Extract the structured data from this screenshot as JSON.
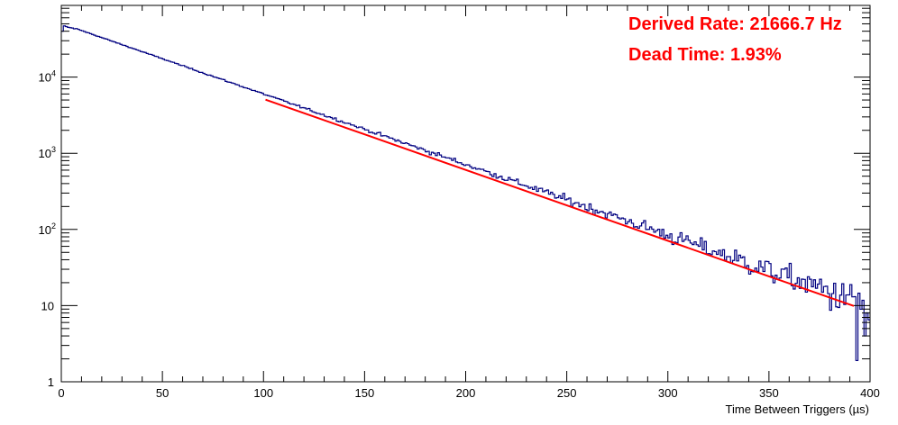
{
  "chart_data": {
    "type": "line",
    "xlabel": "Time Between Triggers (µs)",
    "ylabel": "",
    "xlim": [
      0,
      400
    ],
    "ylim": [
      1,
      80000
    ],
    "yscale": "log",
    "grid": false,
    "x_ticks": [
      "0",
      "50",
      "100",
      "150",
      "200",
      "250",
      "300",
      "350",
      "400"
    ],
    "y_ticks": [
      {
        "value": 1,
        "base": "1",
        "exp": ""
      },
      {
        "value": 10,
        "base": "10",
        "exp": ""
      },
      {
        "value": 100,
        "base": "10",
        "exp": "2"
      },
      {
        "value": 1000,
        "base": "10",
        "exp": "3"
      },
      {
        "value": 10000,
        "base": "10",
        "exp": "4"
      }
    ],
    "annotations": [
      {
        "text": "Derived Rate: 21666.7 Hz",
        "color": "#ff0000"
      },
      {
        "text": "Dead Time: 1.93%",
        "color": "#ff0000"
      }
    ],
    "series": [
      {
        "style": "histogram",
        "color": "#000080",
        "bin_width": 1,
        "x_start": 0,
        "peak": {
          "x": [
            0,
            1,
            2,
            3,
            4,
            5,
            6
          ],
          "y": [
            40000,
            47000,
            46000,
            45000,
            44500,
            44000,
            43000
          ]
        },
        "model": {
          "amplitude": 44000,
          "slope_per_us": -0.0213,
          "from_x": 6,
          "to_x": 400
        },
        "notable_points": [
          {
            "x": 393,
            "y": 1.9
          },
          {
            "x": 397,
            "y": 4
          },
          {
            "x": 399,
            "y": 6.5
          }
        ]
      },
      {
        "style": "line",
        "color": "#ff0000",
        "x": [
          101,
          150,
          200,
          250,
          300,
          350,
          392
        ],
        "y": [
          5050,
          1770,
          605,
          207,
          71,
          24.2,
          9.9
        ]
      }
    ]
  }
}
